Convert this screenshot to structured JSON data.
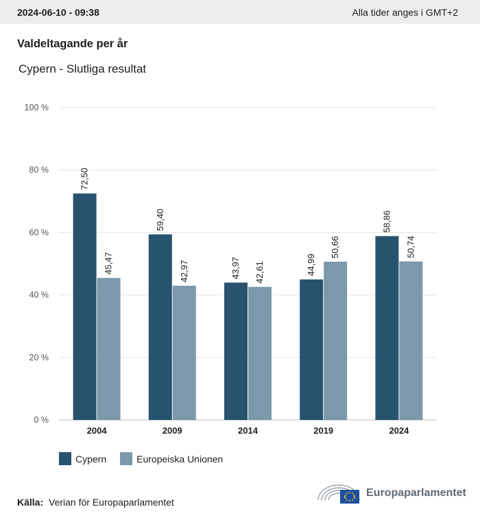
{
  "header": {
    "timestamp": "2024-06-10 - 09:38",
    "timezone_note": "Alla tider anges i GMT+2"
  },
  "title": "Valdeltagande per år",
  "subtitle": "Cypern - Slutliga resultat",
  "colors": {
    "cypern": "#27536f",
    "eu": "#7c99ab",
    "grid": "#e3e3e3",
    "axis": "#bdbdbd"
  },
  "chart_data": {
    "type": "bar",
    "categories": [
      "2004",
      "2009",
      "2014",
      "2019",
      "2024"
    ],
    "series": [
      {
        "name": "Cypern",
        "values": [
          72.5,
          59.4,
          43.97,
          44.99,
          58.86
        ],
        "labels": [
          "72,50",
          "59,40",
          "43,97",
          "44,99",
          "58,86"
        ]
      },
      {
        "name": "Europeiska Unionen",
        "values": [
          45.47,
          42.97,
          42.61,
          50.66,
          50.74
        ],
        "labels": [
          "45,47",
          "42,97",
          "42,61",
          "50,66",
          "50,74"
        ]
      }
    ],
    "yticks": [
      "0 %",
      "20 %",
      "40 %",
      "60 %",
      "80 %",
      "100 %"
    ],
    "ylim": [
      0,
      100
    ],
    "grid": true,
    "legend": "bottom-left"
  },
  "legend": {
    "cypern": "Cypern",
    "eu": "Europeiska Unionen"
  },
  "source": {
    "label": "Källa:",
    "text": "Verian för Europaparlamentet"
  },
  "brand": {
    "name": "Europaparlamentet",
    "icon": "european-parliament-logo-icon"
  }
}
